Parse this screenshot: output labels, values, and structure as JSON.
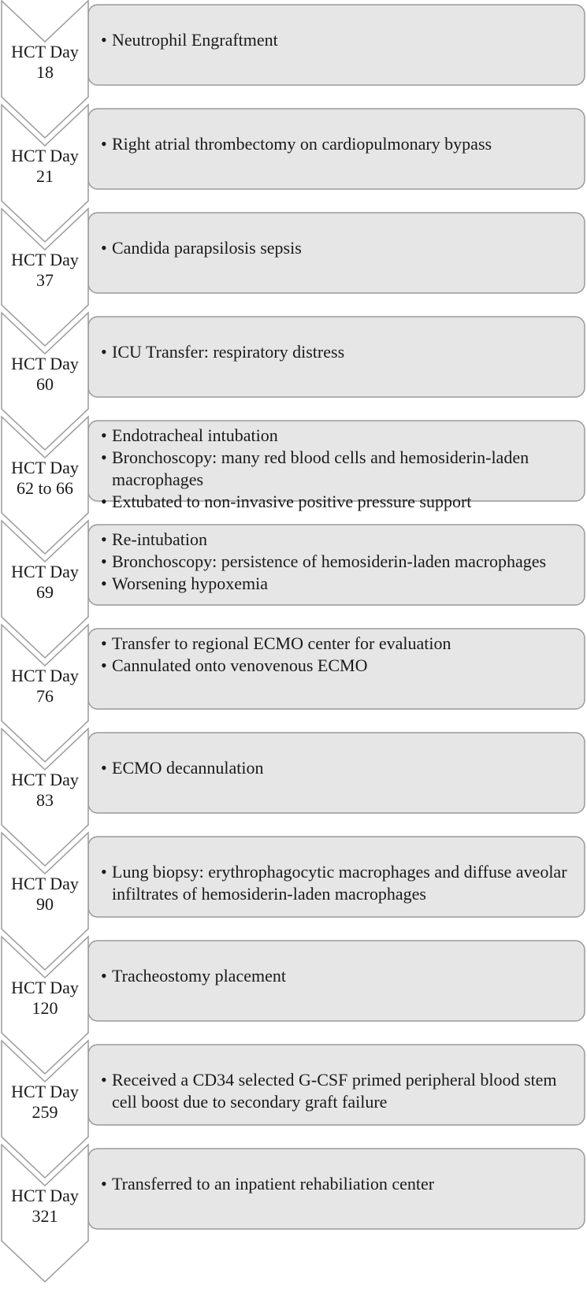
{
  "timeline": [
    {
      "day": "HCT Day",
      "num": "18",
      "events": [
        "Neutrophil Engraftment"
      ]
    },
    {
      "day": "HCT Day",
      "num": "21",
      "events": [
        "Right atrial thrombectomy on cardiopulmonary bypass"
      ]
    },
    {
      "day": "HCT Day",
      "num": "37",
      "events": [
        "Candida parapsilosis sepsis"
      ]
    },
    {
      "day": "HCT Day",
      "num": "60",
      "events": [
        "ICU Transfer: respiratory distress"
      ]
    },
    {
      "day": "HCT Day",
      "num": "62 to 66",
      "events": [
        "Endotracheal intubation",
        "Bronchoscopy: many red blood cells and hemosiderin-laden macrophages",
        "Extubated to non-invasive positive pressure support"
      ]
    },
    {
      "day": "HCT Day",
      "num": "69",
      "events": [
        "Re-intubation",
        "Bronchoscopy: persistence of hemosiderin-laden macrophages",
        "Worsening hypoxemia"
      ]
    },
    {
      "day": "HCT Day",
      "num": "76",
      "events": [
        "Transfer to regional ECMO center for evaluation",
        "Cannulated onto venovenous ECMO"
      ]
    },
    {
      "day": "HCT Day",
      "num": "83",
      "events": [
        "ECMO decannulation"
      ]
    },
    {
      "day": "HCT Day",
      "num": "90",
      "events": [
        "Lung biopsy: erythrophagocytic macrophages and diffuse aveolar infiltrates of hemosiderin-laden macrophages"
      ]
    },
    {
      "day": "HCT Day",
      "num": "120",
      "events": [
        "Tracheostomy placement"
      ]
    },
    {
      "day": "HCT Day",
      "num": "259",
      "events": [
        "Received a CD34 selected G-CSF primed peripheral blood stem cell boost due to secondary graft failure"
      ]
    },
    {
      "day": "HCT Day",
      "num": "321",
      "events": [
        "Transferred to an inpatient rehabiliation center"
      ]
    }
  ],
  "colors": {
    "fill": "#e6e6e6",
    "stroke": "#9a9a9a",
    "text": "#1a1a1a"
  }
}
